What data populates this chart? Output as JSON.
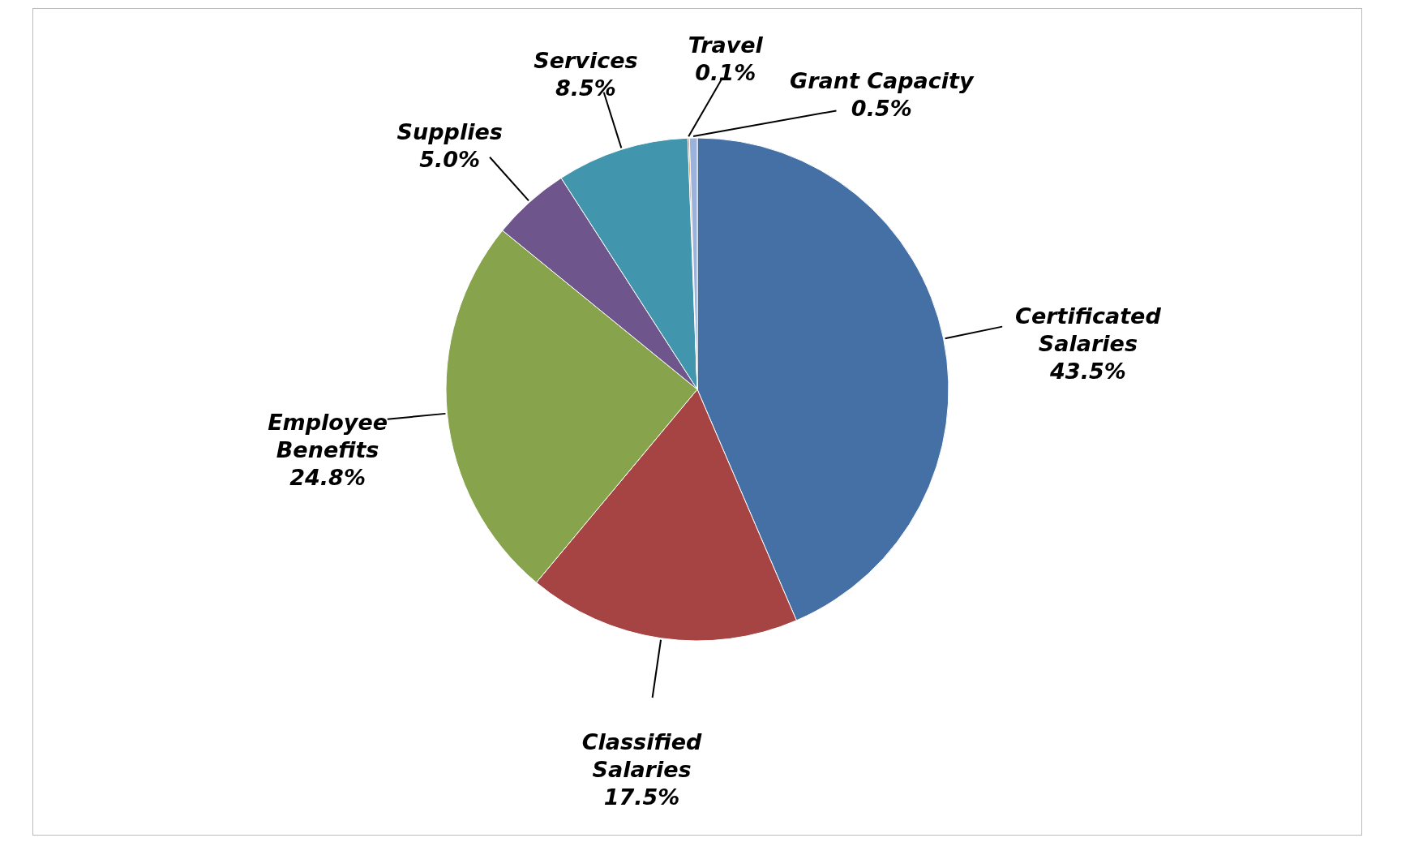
{
  "chart_data": {
    "type": "pie",
    "categories": [
      "Certificated Salaries",
      "Classified Salaries",
      "Employee Benefits",
      "Supplies",
      "Services",
      "Travel",
      "Grant Capacity"
    ],
    "values": [
      43.5,
      17.5,
      24.8,
      5.0,
      8.5,
      0.1,
      0.5
    ],
    "value_labels": [
      "43.5%",
      "17.5%",
      "24.8%",
      "5.0%",
      "8.5%",
      "0.1%",
      "0.5%"
    ],
    "colors": [
      "#4470a5",
      "#a54442",
      "#87a34b",
      "#6e568c",
      "#4195ac",
      "#d9813a",
      "#9bb3da"
    ]
  }
}
